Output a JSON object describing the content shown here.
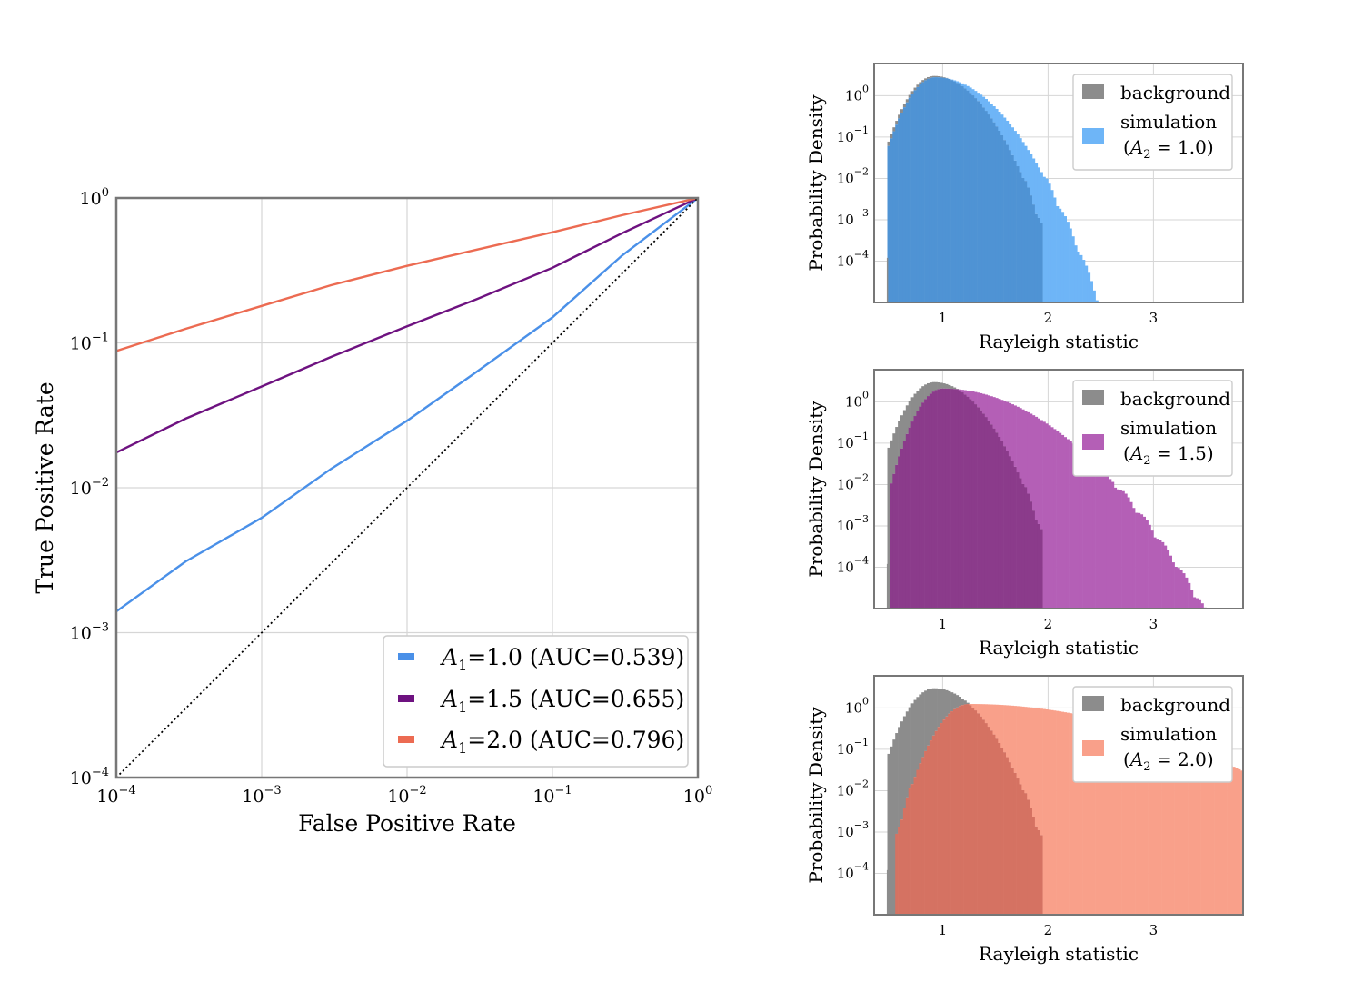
{
  "colors": {
    "a1_0": "#4a90e8",
    "a1_5": "#6e1280",
    "a2_0": "#ec6b52",
    "bg_hist": "#8c8c8c",
    "sim1": "#6eb5f7",
    "sim2": "#b45fb6",
    "sim3": "#f9a08a",
    "ovl1": "#4f93d4",
    "ovl2": "#8b3b8b",
    "ovl3": "#d57262",
    "grid": "#d6d6d6",
    "frame": "#777777"
  },
  "chart_data": [
    {
      "type": "line",
      "name": "roc",
      "title": "",
      "xlabel": "False Positive Rate",
      "ylabel": "True Positive Rate",
      "xscale": "log",
      "yscale": "log",
      "xlim": [
        0.0001,
        1
      ],
      "ylim": [
        0.0001,
        1
      ],
      "xticks": [
        {
          "base": "10",
          "exp": "−4"
        },
        {
          "base": "10",
          "exp": "−3"
        },
        {
          "base": "10",
          "exp": "−2"
        },
        {
          "base": "10",
          "exp": "−1"
        },
        {
          "base": "10",
          "exp": "0"
        }
      ],
      "yticks": [
        {
          "base": "10",
          "exp": "−4"
        },
        {
          "base": "10",
          "exp": "−3"
        },
        {
          "base": "10",
          "exp": "−2"
        },
        {
          "base": "10",
          "exp": "−1"
        },
        {
          "base": "10",
          "exp": "0"
        }
      ],
      "grid": true,
      "legend_position": "bottom-right",
      "series": [
        {
          "name": "A1=1.0 (AUC=0.539)",
          "symbol": "A",
          "sub": "1",
          "value": "=1.0",
          "auc": " (AUC=0.539)",
          "color": "#4a90e8",
          "x": [
            0.0001,
            0.0003,
            0.001,
            0.003,
            0.01,
            0.03,
            0.1,
            0.3,
            1
          ],
          "y": [
            0.0014,
            0.0031,
            0.0062,
            0.0135,
            0.029,
            0.063,
            0.15,
            0.4,
            1
          ]
        },
        {
          "name": "A1=1.5 (AUC=0.655)",
          "symbol": "A",
          "sub": "1",
          "value": "=1.5",
          "auc": " (AUC=0.655)",
          "color": "#6e1280",
          "x": [
            0.0001,
            0.0003,
            0.001,
            0.003,
            0.01,
            0.03,
            0.1,
            0.3,
            1
          ],
          "y": [
            0.0175,
            0.03,
            0.05,
            0.08,
            0.13,
            0.2,
            0.33,
            0.57,
            1
          ]
        },
        {
          "name": "A1=2.0 (AUC=0.796)",
          "symbol": "A",
          "sub": "1",
          "value": "=2.0",
          "auc": " (AUC=0.796)",
          "color": "#ec6b52",
          "x": [
            0.0001,
            0.0003,
            0.001,
            0.003,
            0.01,
            0.03,
            0.1,
            0.3,
            1
          ],
          "y": [
            0.088,
            0.125,
            0.18,
            0.25,
            0.34,
            0.44,
            0.58,
            0.76,
            1
          ]
        },
        {
          "name": "chance",
          "color": "#000000",
          "style": "dotted",
          "x": [
            0.0001,
            1
          ],
          "y": [
            0.0001,
            1
          ]
        }
      ]
    },
    {
      "type": "histogram",
      "name": "hist-a2-1.0",
      "xlabel": "Rayleigh statistic",
      "ylabel": "Probability Density",
      "xlim": [
        0.35,
        3.85
      ],
      "ylim": [
        1e-05,
        6
      ],
      "yscale": "log",
      "xticks": [
        "1",
        "2",
        "3"
      ],
      "yticks": [
        {
          "base": "10",
          "exp": "0"
        },
        {
          "base": "10",
          "exp": "−1"
        },
        {
          "base": "10",
          "exp": "−2"
        },
        {
          "base": "10",
          "exp": "−3"
        },
        {
          "base": "10",
          "exp": "−4"
        }
      ],
      "legend_position": "top-right",
      "legend": {
        "background": "background",
        "simulation": "simulation",
        "param_symbol": "A",
        "param_sub": "2",
        "param_value": "= 1.0)"
      },
      "series": [
        {
          "name": "background",
          "color": "#8c8c8c",
          "bin_width": 0.025,
          "shape": {
            "peak_x": 0.92,
            "peak": 3.0,
            "sigma_left": 0.16,
            "sigma_right": 0.25,
            "onset": 0.48,
            "cutoff": 1.95
          }
        },
        {
          "name": "simulation",
          "color": "#6eb5f7",
          "bin_width": 0.025,
          "shape": {
            "peak_x": 0.93,
            "peak": 2.8,
            "sigma_left": 0.16,
            "sigma_right": 0.31,
            "onset": 0.48,
            "cutoff": 2.72
          }
        }
      ]
    },
    {
      "type": "histogram",
      "name": "hist-a2-1.5",
      "xlabel": "Rayleigh statistic",
      "ylabel": "Probability Density",
      "xlim": [
        0.35,
        3.85
      ],
      "ylim": [
        1e-05,
        6
      ],
      "yscale": "log",
      "xticks": [
        "1",
        "2",
        "3"
      ],
      "yticks": [
        {
          "base": "10",
          "exp": "0"
        },
        {
          "base": "10",
          "exp": "−1"
        },
        {
          "base": "10",
          "exp": "−2"
        },
        {
          "base": "10",
          "exp": "−3"
        },
        {
          "base": "10",
          "exp": "−4"
        }
      ],
      "legend_position": "top-right",
      "legend": {
        "background": "background",
        "simulation": "simulation",
        "param_symbol": "A",
        "param_sub": "2",
        "param_value": "= 1.5)"
      },
      "series": [
        {
          "name": "background",
          "color": "#8c8c8c",
          "bin_width": 0.025,
          "shape": {
            "peak_x": 0.92,
            "peak": 3.0,
            "sigma_left": 0.16,
            "sigma_right": 0.25,
            "onset": 0.48,
            "cutoff": 1.95
          }
        },
        {
          "name": "simulation",
          "color": "#b45fb6",
          "bin_width": 0.025,
          "shape": {
            "peak_x": 1.0,
            "peak": 2.1,
            "sigma_left": 0.15,
            "sigma_right": 0.5,
            "onset": 0.5,
            "cutoff": 3.72
          }
        }
      ]
    },
    {
      "type": "histogram",
      "name": "hist-a2-2.0",
      "xlabel": "Rayleigh statistic",
      "ylabel": "Probability Density",
      "xlim": [
        0.35,
        3.85
      ],
      "ylim": [
        1e-05,
        6
      ],
      "yscale": "log",
      "xticks": [
        "1",
        "2",
        "3"
      ],
      "yticks": [
        {
          "base": "10",
          "exp": "0"
        },
        {
          "base": "10",
          "exp": "−1"
        },
        {
          "base": "10",
          "exp": "−2"
        },
        {
          "base": "10",
          "exp": "−3"
        },
        {
          "base": "10",
          "exp": "−4"
        }
      ],
      "legend_position": "top-right",
      "legend": {
        "background": "background",
        "simulation": "simulation",
        "param_symbol": "A",
        "param_sub": "2",
        "param_value": "= 2.0)"
      },
      "series": [
        {
          "name": "background",
          "color": "#8c8c8c",
          "bin_width": 0.025,
          "shape": {
            "peak_x": 0.92,
            "peak": 3.0,
            "sigma_left": 0.16,
            "sigma_right": 0.25,
            "onset": 0.48,
            "cutoff": 1.95
          }
        },
        {
          "name": "simulation",
          "color": "#f9a08a",
          "bin_width": 0.025,
          "shape": {
            "peak_x": 1.25,
            "peak": 1.25,
            "sigma_left": 0.18,
            "sigma_right": 0.95,
            "onset": 0.55,
            "cutoff": 3.85
          }
        }
      ]
    }
  ]
}
